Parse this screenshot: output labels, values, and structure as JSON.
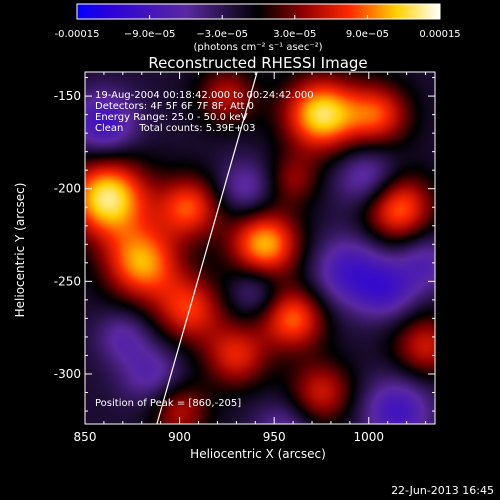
{
  "chart_data": {
    "type": "heatmap",
    "title": "Reconstructed RHESSI Image",
    "xlabel": "Heliocentric X (arcsec)",
    "ylabel": "Heliocentric Y (arcsec)",
    "xlim": [
      850,
      1035
    ],
    "ylim": [
      -327,
      -137
    ],
    "xticks": [
      850,
      900,
      950,
      1000
    ],
    "yticks": [
      -150,
      -200,
      -250,
      -300
    ],
    "colorbar": {
      "range": [
        -0.00015,
        0.00015
      ],
      "tick_values": [
        -0.00015,
        -9e-05,
        -3e-05,
        3e-05,
        9e-05,
        0.00015
      ],
      "tick_labels": [
        "-0.00015",
        "−9.0e−05",
        "−3.0e−05",
        "3.0e−05",
        "9.0e−05",
        "0.00015"
      ],
      "units_text": "(photons cm⁻² s⁻¹ asec⁻²)",
      "colors": [
        "#0000ff",
        "#000000",
        "#ff0000",
        "#ffff00",
        "#ffffff"
      ]
    },
    "annotations": [
      "19-Aug-2004 00:18:42.000 to 00:24:42.000",
      "Detectors: 4F 5F 6F 7F 8F, Att 0",
      "Energy Range: 25.0 - 50.0 keV",
      "Clean     Total counts: 5.39E+03"
    ],
    "peak_label": "Position of Peak = [860,-205]",
    "peak": [
      860,
      -205
    ],
    "limb_line": [
      [
        888,
        -327
      ],
      [
        941,
        -137
      ]
    ],
    "blobs": [
      {
        "x": 862,
        "y": -205,
        "v": 1.0,
        "s": 15
      },
      {
        "x": 975,
        "y": -160,
        "v": 0.95,
        "s": 14
      },
      {
        "x": 1005,
        "y": -160,
        "v": 0.6,
        "s": 12
      },
      {
        "x": 1015,
        "y": -210,
        "v": 0.75,
        "s": 13
      },
      {
        "x": 945,
        "y": -230,
        "v": 0.85,
        "s": 13
      },
      {
        "x": 905,
        "y": -210,
        "v": 0.65,
        "s": 12
      },
      {
        "x": 880,
        "y": -240,
        "v": 0.8,
        "s": 14
      },
      {
        "x": 905,
        "y": -265,
        "v": 0.6,
        "s": 13
      },
      {
        "x": 960,
        "y": -270,
        "v": 0.7,
        "s": 12
      },
      {
        "x": 930,
        "y": -290,
        "v": 0.55,
        "s": 12
      },
      {
        "x": 975,
        "y": -310,
        "v": 0.5,
        "s": 12
      },
      {
        "x": 900,
        "y": -320,
        "v": 0.45,
        "s": 11
      },
      {
        "x": 925,
        "y": -150,
        "v": 0.45,
        "s": 11
      },
      {
        "x": 1030,
        "y": -285,
        "v": 0.5,
        "s": 12
      },
      {
        "x": 960,
        "y": -195,
        "v": 0.35,
        "s": 10
      },
      {
        "x": 990,
        "y": -245,
        "v": -0.5,
        "s": 14
      },
      {
        "x": 860,
        "y": -165,
        "v": -0.55,
        "s": 12
      },
      {
        "x": 1015,
        "y": -320,
        "v": -0.5,
        "s": 13
      },
      {
        "x": 1010,
        "y": -255,
        "v": -0.4,
        "s": 11
      },
      {
        "x": 935,
        "y": -200,
        "v": -0.35,
        "s": 11
      },
      {
        "x": 885,
        "y": -300,
        "v": -0.35,
        "s": 12
      },
      {
        "x": 940,
        "y": -255,
        "v": -0.3,
        "s": 10
      },
      {
        "x": 1000,
        "y": -195,
        "v": -0.45,
        "s": 12
      },
      {
        "x": 1030,
        "y": -240,
        "v": -0.35,
        "s": 11
      },
      {
        "x": 955,
        "y": -330,
        "v": -0.3,
        "s": 11
      },
      {
        "x": 870,
        "y": -280,
        "v": -0.3,
        "s": 10
      }
    ]
  },
  "footer": {
    "date_stamp": "22-Jun-2013 16:45"
  }
}
